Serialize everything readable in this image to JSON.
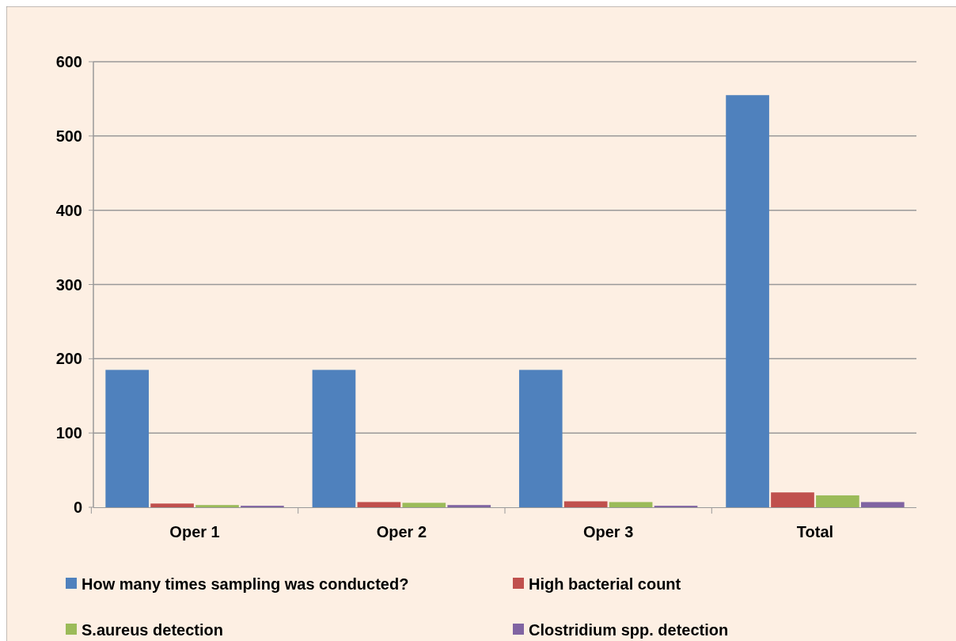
{
  "chart_data": {
    "type": "bar",
    "categories": [
      "Oper 1",
      "Oper 2",
      "Oper 3",
      "Total"
    ],
    "series": [
      {
        "name": "How many times sampling was conducted?",
        "color": "#4f81bd",
        "values": [
          185,
          185,
          185,
          555
        ]
      },
      {
        "name": "High bacterial count",
        "color": "#c0504d",
        "values": [
          5,
          7,
          8,
          20
        ]
      },
      {
        "name": "S.aureus detection",
        "color": "#9bbb59",
        "values": [
          3,
          6,
          7,
          16
        ]
      },
      {
        "name": "Clostridium spp. detection",
        "color": "#8064a2",
        "values": [
          2,
          3,
          2,
          7
        ]
      }
    ],
    "ylim": [
      0,
      600
    ],
    "yticks": [
      0,
      100,
      200,
      300,
      400,
      500,
      600
    ],
    "grid": "y",
    "legend": "bottom"
  }
}
